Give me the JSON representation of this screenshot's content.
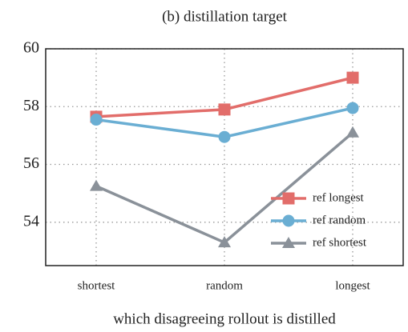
{
  "chart_data": {
    "type": "line",
    "title": "(b) distillation target",
    "x_label": "which disagreeing rollout is distilled",
    "categories": [
      "shortest",
      "random",
      "longest"
    ],
    "series": [
      {
        "name": "ref longest",
        "color": "#e26d6a",
        "marker": "square",
        "values": [
          57.65,
          57.9,
          59.0
        ]
      },
      {
        "name": "ref random",
        "color": "#6aaed3",
        "marker": "circle",
        "values": [
          57.55,
          56.95,
          57.95
        ]
      },
      {
        "name": "ref shortest",
        "color": "#8a9199",
        "marker": "triangle",
        "values": [
          55.25,
          53.3,
          57.1
        ]
      }
    ],
    "ylim": [
      52.5,
      60
    ],
    "yticks": [
      54,
      56,
      58,
      60
    ],
    "grid": true,
    "legend": "lower right"
  }
}
